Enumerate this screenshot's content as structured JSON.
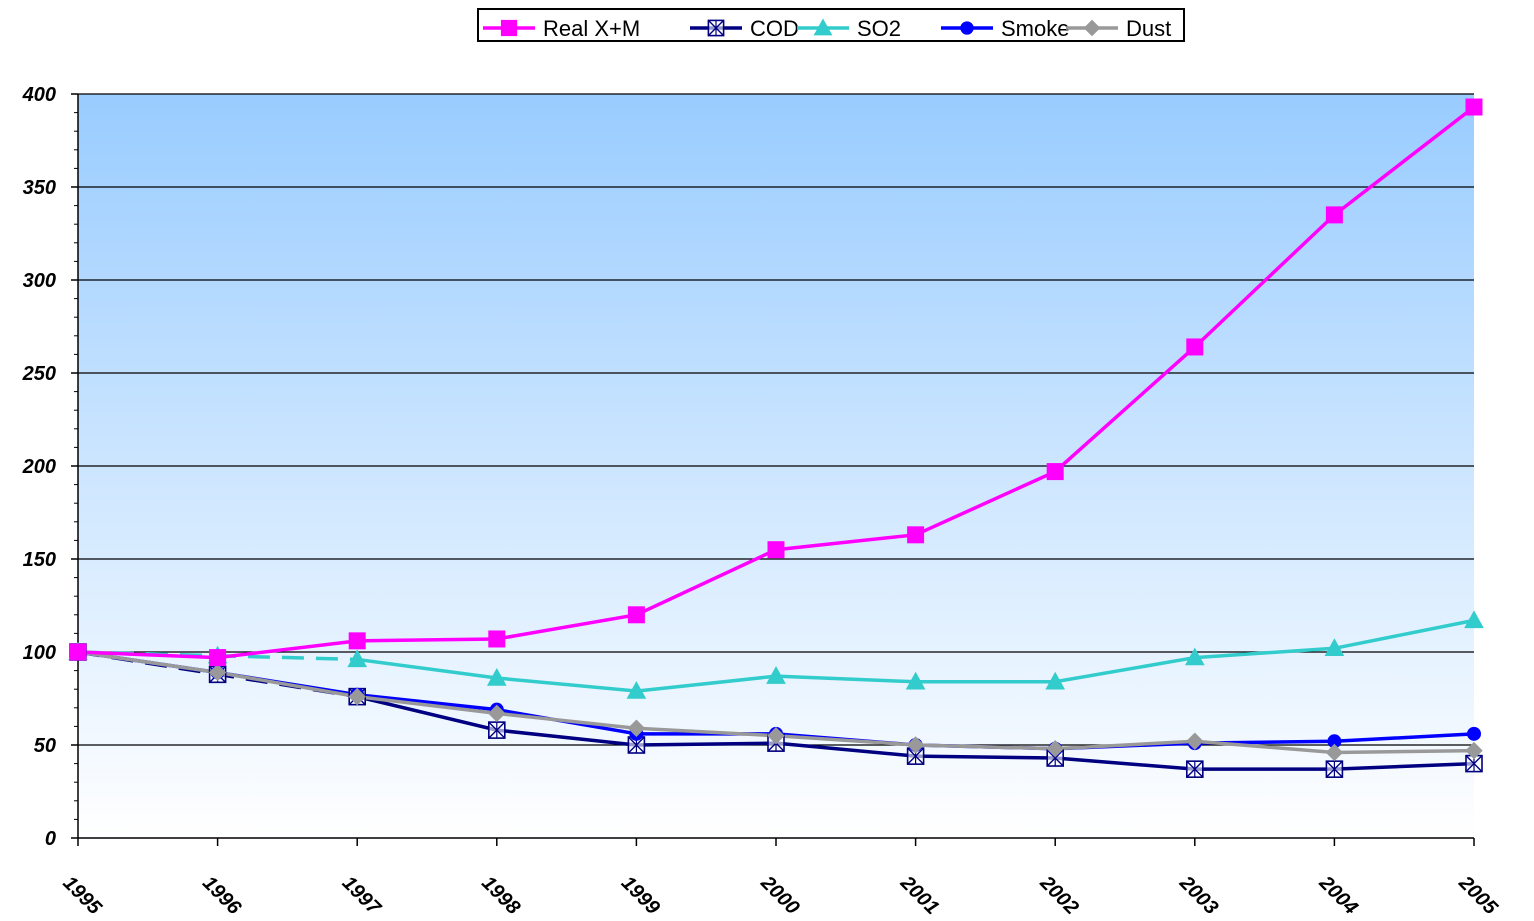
{
  "chart_data": {
    "type": "line",
    "title": "",
    "xlabel": "",
    "ylabel": "",
    "x": [
      "1995",
      "1996",
      "1997",
      "1998",
      "1999",
      "2000",
      "2001",
      "2002",
      "2003",
      "2004",
      "2005"
    ],
    "ylim": [
      0,
      400
    ],
    "yticks": [
      "0",
      "50",
      "100",
      "150",
      "200",
      "250",
      "300",
      "350",
      "400"
    ],
    "grid": true,
    "legend_position": "top",
    "series": [
      {
        "name": "Real X+M",
        "color": "#ff00ff",
        "marker": "square",
        "values": [
          100,
          97,
          106,
          107,
          120,
          155,
          163,
          197,
          264,
          335,
          393
        ]
      },
      {
        "name": "COD",
        "color": "#000080",
        "marker": "boxed-x",
        "values": [
          100,
          88,
          76,
          58,
          50,
          51,
          44,
          43,
          37,
          37,
          40
        ]
      },
      {
        "name": "SO2",
        "color": "#33cccc",
        "marker": "triangle",
        "values": [
          100,
          98,
          96,
          86,
          79,
          87,
          84,
          84,
          97,
          102,
          117
        ]
      },
      {
        "name": "Smoke",
        "color": "#0000ff",
        "marker": "circle",
        "values": [
          100,
          89,
          77,
          69,
          56,
          56,
          50,
          48,
          51,
          52,
          56
        ]
      },
      {
        "name": "Dust",
        "color": "#999999",
        "marker": "diamond",
        "values": [
          100,
          89,
          76,
          67,
          59,
          55,
          50,
          48,
          52,
          46,
          47
        ]
      }
    ]
  }
}
